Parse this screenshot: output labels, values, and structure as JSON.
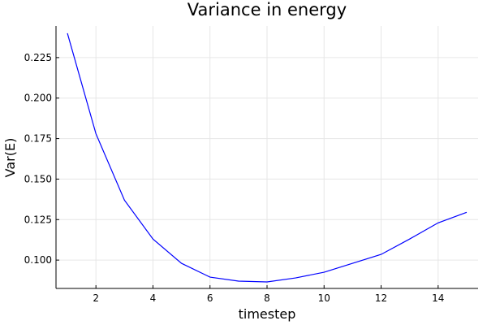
{
  "chart_data": {
    "type": "line",
    "title": "Variance in energy",
    "xlabel": "timestep",
    "ylabel": "Var(E)",
    "x": [
      1,
      2,
      3,
      4,
      5,
      6,
      7,
      8,
      9,
      10,
      11,
      12,
      13,
      14,
      15
    ],
    "series": [
      {
        "values": [
          0.24,
          0.178,
          0.137,
          0.113,
          0.098,
          0.0895,
          0.087,
          0.0865,
          0.089,
          0.0925,
          0.098,
          0.1035,
          0.113,
          0.123,
          0.1295
        ],
        "color": "#0000ff"
      }
    ],
    "xlim": [
      0.6,
      15.4
    ],
    "ylim": [
      0.0825,
      0.2445
    ],
    "xticks": [
      2,
      4,
      6,
      8,
      10,
      12,
      14
    ],
    "xtick_labels": [
      "2",
      "4",
      "6",
      "8",
      "10",
      "12",
      "14"
    ],
    "yticks": [
      0.1,
      0.125,
      0.15,
      0.175,
      0.2,
      0.225
    ],
    "ytick_labels": [
      "0.100",
      "0.125",
      "0.150",
      "0.175",
      "0.200",
      "0.225"
    ],
    "grid": true,
    "legend": "none"
  }
}
